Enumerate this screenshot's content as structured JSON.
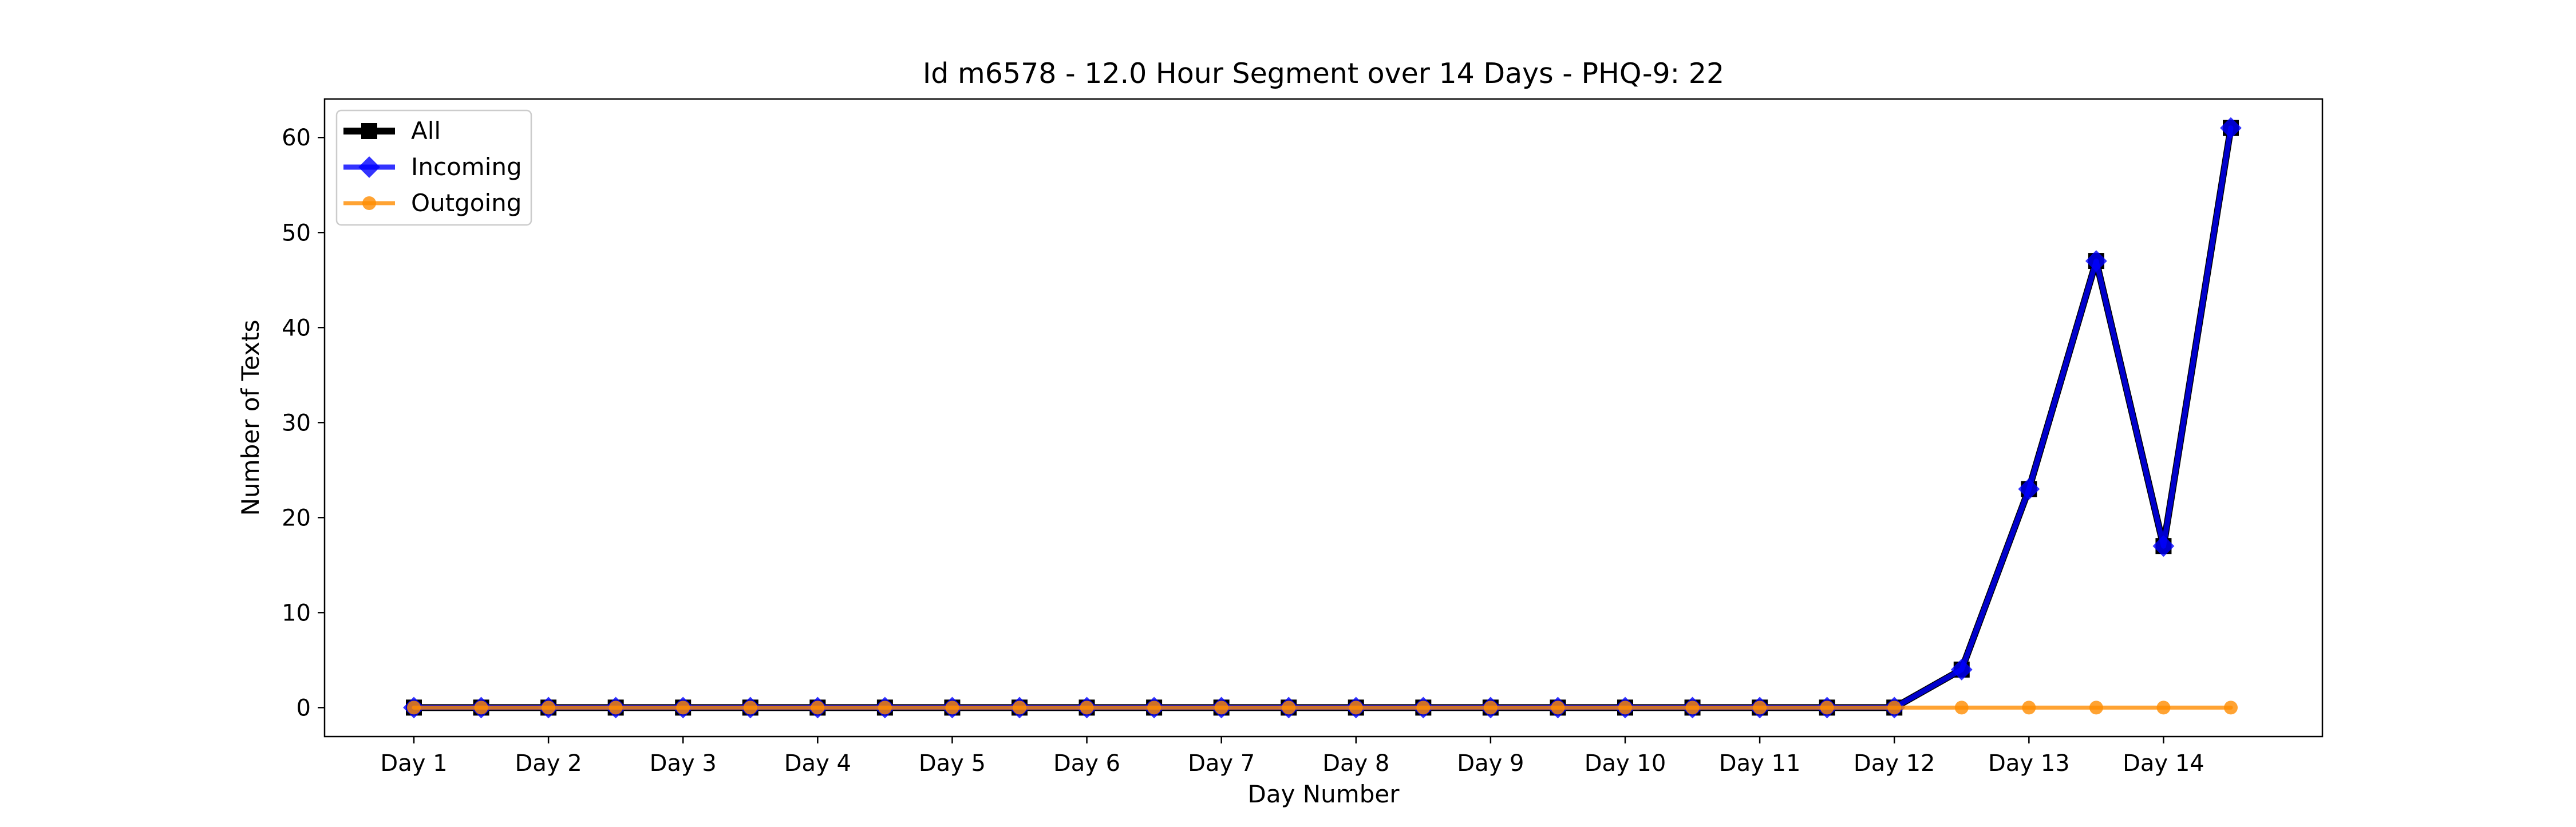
{
  "chart_data": {
    "type": "line",
    "title": "Id m6578 - 12.0 Hour Segment over 14 Days - PHQ-9: 22",
    "xlabel": "Day Number",
    "ylabel": "Number of Texts",
    "x_tick_labels": [
      "Day 1",
      "Day 2",
      "Day 3",
      "Day 4",
      "Day 5",
      "Day 6",
      "Day 7",
      "Day 8",
      "Day 9",
      "Day 10",
      "Day 11",
      "Day 12",
      "Day 13",
      "Day 14"
    ],
    "y_ticks": [
      0,
      10,
      20,
      30,
      40,
      50,
      60
    ],
    "ylim": [
      -3.05,
      64.05
    ],
    "segments_per_day": 2,
    "grid": false,
    "legend_position": "upper-left",
    "series": [
      {
        "name": "All",
        "color": "#000000",
        "marker": "square",
        "values": [
          0,
          0,
          0,
          0,
          0,
          0,
          0,
          0,
          0,
          0,
          0,
          0,
          0,
          0,
          0,
          0,
          0,
          0,
          0,
          0,
          0,
          0,
          0,
          4,
          23,
          47,
          17,
          61
        ]
      },
      {
        "name": "Incoming",
        "color": "#0000ff",
        "marker": "diamond",
        "values": [
          0,
          0,
          0,
          0,
          0,
          0,
          0,
          0,
          0,
          0,
          0,
          0,
          0,
          0,
          0,
          0,
          0,
          0,
          0,
          0,
          0,
          0,
          0,
          4,
          23,
          47,
          17,
          61
        ]
      },
      {
        "name": "Outgoing",
        "color": "#ff8c00",
        "marker": "circle",
        "values": [
          0,
          0,
          0,
          0,
          0,
          0,
          0,
          0,
          0,
          0,
          0,
          0,
          0,
          0,
          0,
          0,
          0,
          0,
          0,
          0,
          0,
          0,
          0,
          0,
          0,
          0,
          0,
          0
        ]
      }
    ]
  }
}
